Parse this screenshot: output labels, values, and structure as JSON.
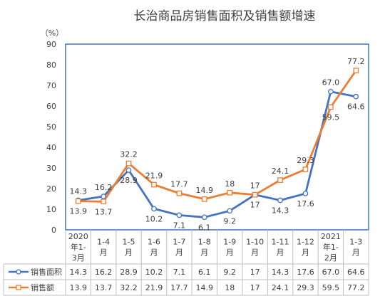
{
  "chart_data": {
    "type": "line",
    "title": "长治商品房销售面积及销售额增速",
    "unit": "（%）",
    "ylim": [
      0,
      90
    ],
    "yticks": [
      0,
      10,
      20,
      30,
      40,
      50,
      60,
      70,
      80,
      90
    ],
    "categories": [
      [
        "2020",
        "年1-",
        "3月"
      ],
      [
        "1-4",
        "月"
      ],
      [
        "1-5",
        "月"
      ],
      [
        "1-6",
        "月"
      ],
      [
        "1-7",
        "月"
      ],
      [
        "1-8",
        "月"
      ],
      [
        "1-9",
        "月"
      ],
      [
        "1-10",
        "月"
      ],
      [
        "1-11",
        "月"
      ],
      [
        "1-12",
        "月"
      ],
      [
        "2021",
        "年1-",
        "2月"
      ],
      [
        "1-3",
        "月"
      ]
    ],
    "series": [
      {
        "name": "销售面积",
        "color": "#4472C4",
        "marker": "circle",
        "values": [
          14.3,
          16.2,
          28.9,
          10.2,
          7.1,
          6.1,
          9.2,
          17,
          14.3,
          17.6,
          67.0,
          64.6
        ],
        "labels": [
          "14.3",
          "16.2",
          "28.9",
          "10.2",
          "7.1",
          "6.1",
          "9.2",
          "17",
          "14.3",
          "17.6",
          "67.0",
          "64.6"
        ]
      },
      {
        "name": "销售额",
        "color": "#ED7D31",
        "marker": "square",
        "values": [
          13.9,
          13.7,
          32.2,
          21.9,
          17.7,
          14.9,
          18,
          17,
          24.1,
          29.3,
          59.5,
          77.2
        ],
        "labels": [
          "13.9",
          "13.7",
          "32.2",
          "21.9",
          "17.7",
          "14.9",
          "18",
          "17",
          "24.1",
          "29.3",
          "59.5",
          "77.2"
        ]
      }
    ],
    "grid": false,
    "legend": "data-table"
  }
}
